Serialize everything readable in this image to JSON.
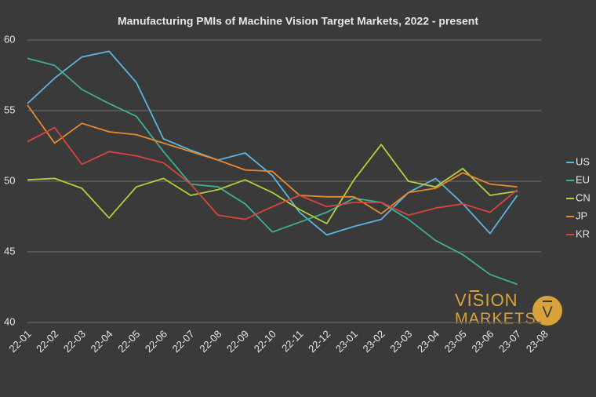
{
  "chart_data": {
    "type": "line",
    "title": "Manufacturing PMIs of Machine Vision Target Markets, 2022 - present",
    "categories": [
      "22-01",
      "22-02",
      "22-03",
      "22-04",
      "22-05",
      "22-06",
      "22-07",
      "22-08",
      "22-09",
      "22-10",
      "22-11",
      "22-12",
      "23-01",
      "23-02",
      "23-03",
      "23-04",
      "23-05",
      "23-06",
      "23-07",
      "23-08"
    ],
    "series": [
      {
        "name": "US",
        "color": "#5bb5dc",
        "values": [
          55.5,
          57.3,
          58.8,
          59.2,
          57.0,
          53.0,
          52.2,
          51.5,
          52.0,
          50.4,
          47.8,
          46.2,
          46.8,
          47.3,
          49.2,
          50.2,
          48.4,
          46.3,
          49.0,
          null
        ]
      },
      {
        "name": "EU",
        "color": "#3fae98",
        "values": [
          58.7,
          58.2,
          56.5,
          55.5,
          54.6,
          52.1,
          49.8,
          49.6,
          48.4,
          46.4,
          47.1,
          47.8,
          48.8,
          48.5,
          47.3,
          45.8,
          44.8,
          43.4,
          42.7,
          null
        ]
      },
      {
        "name": "CN",
        "color": "#b3cf3a",
        "values": [
          50.1,
          50.2,
          49.5,
          47.4,
          49.6,
          50.2,
          49.0,
          49.4,
          50.1,
          49.2,
          48.0,
          47.0,
          50.1,
          52.6,
          50.0,
          49.6,
          50.9,
          49.0,
          49.3,
          null
        ]
      },
      {
        "name": "JP",
        "color": "#e6892f",
        "values": [
          55.4,
          52.7,
          54.1,
          53.5,
          53.3,
          52.7,
          52.1,
          51.5,
          50.8,
          50.7,
          49.0,
          48.9,
          48.9,
          47.7,
          49.2,
          49.5,
          50.6,
          49.8,
          49.6,
          null
        ]
      },
      {
        "name": "KR",
        "color": "#d8453a",
        "values": [
          52.8,
          53.8,
          51.2,
          52.1,
          51.8,
          51.3,
          49.8,
          47.6,
          47.3,
          48.2,
          49.0,
          48.2,
          48.5,
          48.5,
          47.6,
          48.1,
          48.4,
          47.8,
          49.4,
          null
        ]
      }
    ],
    "ylim": [
      40,
      60
    ],
    "yticks": [
      40,
      45,
      50,
      55,
      60
    ],
    "grid": true,
    "legend": "right"
  },
  "logo": {
    "line1": "VISION",
    "line2": "MARKETS",
    "badge": "V"
  }
}
